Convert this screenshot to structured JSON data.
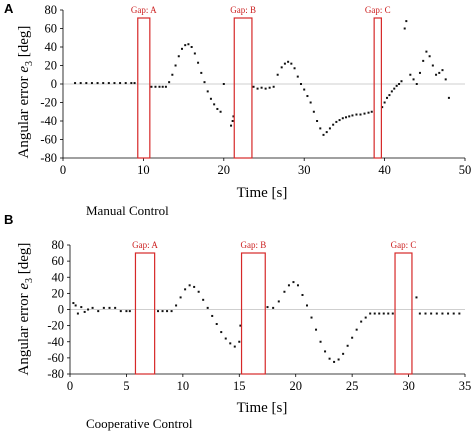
{
  "chart_data": [
    {
      "type": "scatter",
      "panel_label": "A",
      "caption": "Manual Control",
      "xlabel": "Time [s]",
      "ylabel_main": "Angular error ",
      "ylabel_symbol": "e",
      "ylabel_sub": "3",
      "ylabel_unit": " [deg]",
      "xlim": [
        0,
        50
      ],
      "ylim": [
        -80,
        80
      ],
      "xticks": [
        0,
        10,
        20,
        30,
        40,
        50
      ],
      "yticks": [
        -80,
        -60,
        -40,
        -20,
        0,
        20,
        40,
        60,
        80
      ],
      "gaps": [
        {
          "label": "Gap: A",
          "start": 9.3,
          "end": 10.8
        },
        {
          "label": "Gap: B",
          "start": 21.3,
          "end": 23.5
        },
        {
          "label": "Gap: C",
          "start": 38.7,
          "end": 39.6
        }
      ],
      "series": [
        {
          "x": [
            1.5,
            2.2,
            2.9,
            3.6,
            4.3,
            5.0,
            5.7,
            6.4,
            7.1,
            7.8,
            8.5,
            8.9,
            11.0,
            11.5,
            12.0,
            12.4,
            12.8,
            13.2,
            13.6,
            14.0,
            14.4,
            14.8,
            15.2,
            15.6,
            16.0,
            16.4,
            16.8,
            17.2,
            17.6,
            18.0,
            18.4,
            18.8,
            19.2,
            19.6,
            20.0,
            20.9,
            21.1,
            21.2,
            23.7,
            24.2,
            24.7,
            25.2,
            25.7,
            26.2,
            26.7,
            27.2,
            27.6,
            28.0,
            28.4,
            28.8,
            29.2,
            29.6,
            30.0,
            30.4,
            30.8,
            31.2,
            31.6,
            32.0,
            32.4,
            32.8,
            33.2,
            33.6,
            34.0,
            34.4,
            34.8,
            35.2,
            35.6,
            36.0,
            36.5,
            37.0,
            37.5,
            38.0,
            38.4,
            39.7,
            40.0,
            40.3,
            40.6,
            40.9,
            41.2,
            41.5,
            41.8,
            42.1,
            42.5,
            42.7,
            43.2,
            43.6,
            44.0,
            44.4,
            44.8,
            45.2,
            45.6,
            46.0,
            46.4,
            46.8,
            47.2,
            47.6,
            48.0
          ],
          "y": [
            1,
            1,
            1,
            1,
            1,
            1,
            1,
            1,
            1,
            1,
            1,
            1,
            -3,
            -3,
            -3,
            -3,
            -3,
            2,
            10,
            20,
            30,
            38,
            42,
            43,
            40,
            33,
            23,
            12,
            2,
            -8,
            -16,
            -22,
            -27,
            -30,
            0,
            -45,
            -40,
            -35,
            -3,
            -5,
            -4,
            -5,
            -4,
            -3,
            10,
            18,
            22,
            24,
            22,
            17,
            8,
            0,
            -6,
            -13,
            -20,
            -30,
            -40,
            -48,
            -55,
            -52,
            -48,
            -44,
            -41,
            -39,
            -37,
            -36,
            -35,
            -34,
            -33,
            -33,
            -32,
            -31,
            -30,
            -25,
            -20,
            -15,
            -12,
            -8,
            -5,
            -2,
            0,
            3,
            60,
            68,
            10,
            5,
            0,
            12,
            25,
            35,
            30,
            20,
            10,
            12,
            15,
            5,
            -15
          ]
        }
      ]
    },
    {
      "type": "scatter",
      "panel_label": "B",
      "caption": "Cooperative Control",
      "xlabel": "Time [s]",
      "ylabel_main": "Angular error ",
      "ylabel_symbol": "e",
      "ylabel_sub": "3",
      "ylabel_unit": " [deg]",
      "xlim": [
        0,
        35
      ],
      "ylim": [
        -80,
        80
      ],
      "xticks": [
        0,
        5,
        10,
        15,
        20,
        25,
        30,
        35
      ],
      "yticks": [
        -80,
        -60,
        -40,
        -20,
        0,
        20,
        40,
        60,
        80
      ],
      "gaps": [
        {
          "label": "Gap: A",
          "start": 5.8,
          "end": 7.5
        },
        {
          "label": "Gap: B",
          "start": 15.2,
          "end": 17.3
        },
        {
          "label": "Gap: C",
          "start": 28.8,
          "end": 30.3
        }
      ],
      "series": [
        {
          "x": [
            0.3,
            0.5,
            0.7,
            1.0,
            1.3,
            1.6,
            2.0,
            2.5,
            3.0,
            3.5,
            4.0,
            4.5,
            5.0,
            5.3,
            7.8,
            8.2,
            8.6,
            9.0,
            9.4,
            9.8,
            10.2,
            10.6,
            11.0,
            11.4,
            11.8,
            12.2,
            12.6,
            13.0,
            13.4,
            13.8,
            14.2,
            14.6,
            15.0,
            15.1,
            17.5,
            18.0,
            18.5,
            19.0,
            19.4,
            19.8,
            20.2,
            20.6,
            21.0,
            21.4,
            21.8,
            22.2,
            22.6,
            23.0,
            23.4,
            23.8,
            24.2,
            24.6,
            25.0,
            25.4,
            25.8,
            26.2,
            26.6,
            27.0,
            27.4,
            27.8,
            28.2,
            28.6,
            30.7,
            31.0,
            31.5,
            32.0,
            32.5,
            33.0,
            33.5,
            34.0,
            34.5
          ],
          "y": [
            8,
            5,
            -5,
            3,
            -3,
            0,
            2,
            -2,
            2,
            2,
            2,
            -2,
            -2,
            -2,
            -2,
            -2,
            -2,
            -2,
            5,
            15,
            25,
            30,
            28,
            22,
            12,
            2,
            -8,
            -18,
            -28,
            -36,
            -42,
            -46,
            -40,
            -20,
            3,
            2,
            10,
            22,
            30,
            34,
            30,
            18,
            5,
            -10,
            -25,
            -40,
            -52,
            -61,
            -65,
            -62,
            -55,
            -45,
            -35,
            -25,
            -15,
            -10,
            -5,
            -5,
            -5,
            -5,
            -5,
            -5,
            15,
            -5,
            -5,
            -5,
            -5,
            -5,
            -5,
            -5,
            -5
          ]
        }
      ]
    }
  ]
}
